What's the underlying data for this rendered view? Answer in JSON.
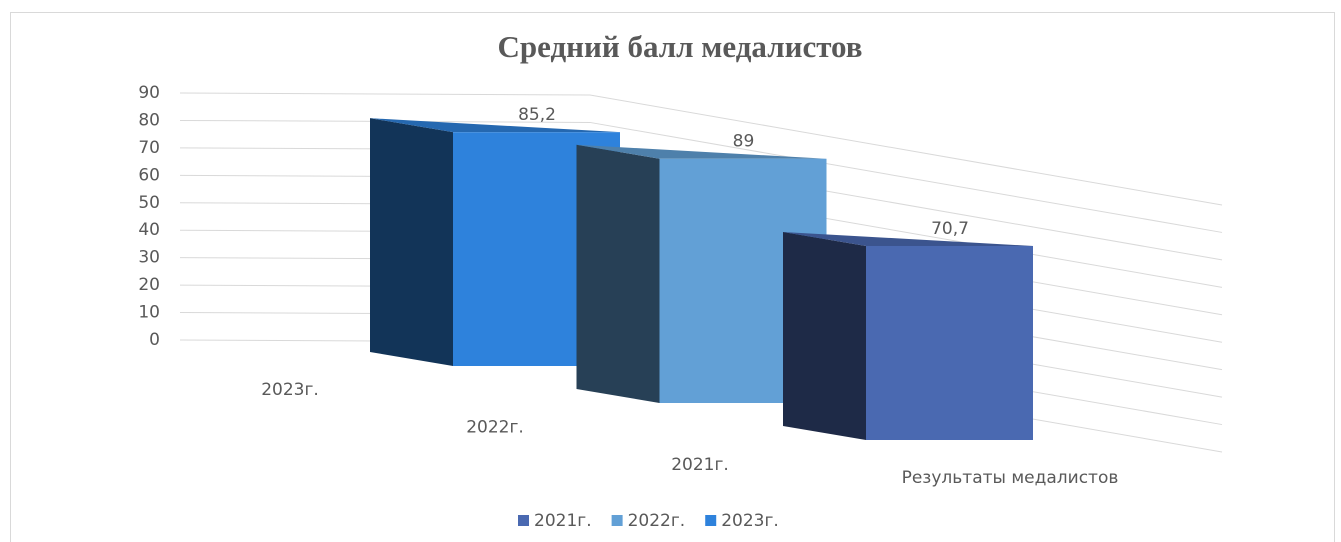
{
  "chart_data": {
    "type": "bar3d",
    "title": "Средний балл  медалистов",
    "categories": [
      "Результаты медалистов"
    ],
    "series": [
      {
        "name": "2021г.",
        "color": "#4a69b1",
        "values": [
          70.7
        ],
        "value_labels": [
          "70,7"
        ]
      },
      {
        "name": "2022г.",
        "color": "#62a0d6",
        "values": [
          89
        ],
        "value_labels": [
          "89"
        ]
      },
      {
        "name": "2023г.",
        "color": "#2e82dc",
        "values": [
          85.2
        ],
        "value_labels": [
          "85,2"
        ]
      }
    ],
    "depth_order": [
      2,
      1,
      0
    ],
    "ylim": [
      0,
      90
    ],
    "yticks": [
      0,
      10,
      20,
      30,
      40,
      50,
      60,
      70,
      80,
      90
    ],
    "grid": true,
    "legend": "bottom"
  }
}
